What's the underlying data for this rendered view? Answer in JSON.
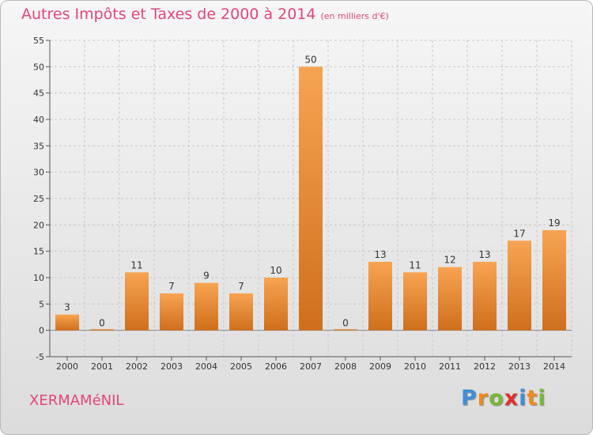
{
  "title": "Autres Impôts et Taxes de 2000 à 2014",
  "subtitle": "(en milliers d'€)",
  "commune": "XERMAMéNIL",
  "logo": {
    "letters": [
      "P",
      "r",
      "o",
      "x",
      "i",
      "t",
      "i"
    ],
    "colors": [
      "#3d8fd6",
      "#f08a1c",
      "#7ab83a",
      "#e03030",
      "#3d8fd6",
      "#f08a1c",
      "#7ab83a"
    ]
  },
  "colors": {
    "accent": "#e2457c",
    "bar_top": "#f7a452",
    "bar_bottom": "#cf6f1c"
  },
  "chart_data": {
    "type": "bar",
    "title": "Autres Impôts et Taxes de 2000 à 2014",
    "subtitle": "(en milliers d'€)",
    "categories": [
      "2000",
      "2001",
      "2002",
      "2003",
      "2004",
      "2005",
      "2006",
      "2007",
      "2008",
      "2009",
      "2010",
      "2011",
      "2012",
      "2013",
      "2014"
    ],
    "values": [
      3,
      0,
      11,
      7,
      9,
      7,
      10,
      50,
      0,
      13,
      11,
      12,
      13,
      17,
      19
    ],
    "ylim": [
      -5,
      55
    ],
    "yticks": [
      -5,
      0,
      5,
      10,
      15,
      20,
      25,
      30,
      35,
      40,
      45,
      50,
      55
    ],
    "grid": true,
    "xlabel": "",
    "ylabel": ""
  }
}
